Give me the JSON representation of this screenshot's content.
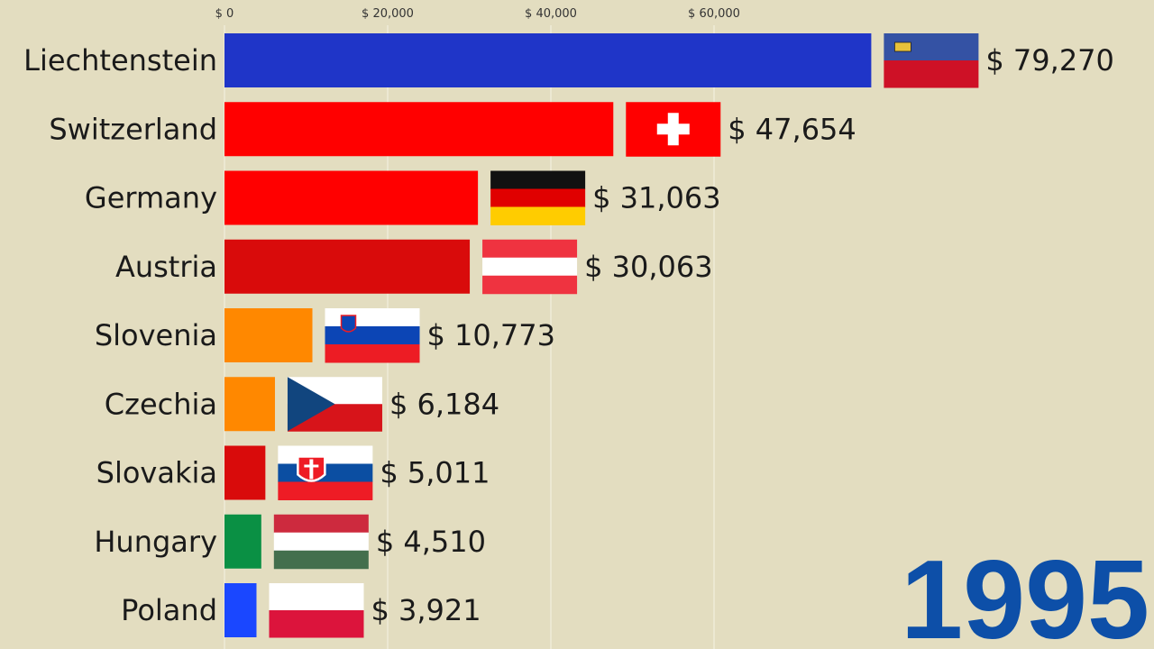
{
  "chart_data": {
    "type": "barh",
    "annotation": "1995",
    "categories": [
      "Liechtenstein",
      "Switzerland",
      "Germany",
      "Austria",
      "Slovenia",
      "Czechia",
      "Slovakia",
      "Hungary",
      "Poland"
    ],
    "values": [
      79270,
      47654,
      31063,
      30063,
      10773,
      6184,
      5011,
      4510,
      3921
    ],
    "value_labels": [
      "$ 79,270",
      "$ 47,654",
      "$ 31,063",
      "$ 30,063",
      "$ 10,773",
      "$ 6,184",
      "$ 5,011",
      "$ 4,510",
      "$ 3,921"
    ],
    "colors": [
      "#1f35c8",
      "#ff0000",
      "#ff0000",
      "#d90b0b",
      "#ff8800",
      "#ff8800",
      "#d90b0b",
      "#0a9044",
      "#1a47ff"
    ],
    "xlim": [
      0,
      80000
    ],
    "xticks": [
      {
        "value": 0,
        "label": "$ 0"
      },
      {
        "value": 20000,
        "label": "$ 20,000"
      },
      {
        "value": 40000,
        "label": "$ 40,000"
      },
      {
        "value": 60000,
        "label": "$ 60,000"
      }
    ],
    "grid": true
  }
}
